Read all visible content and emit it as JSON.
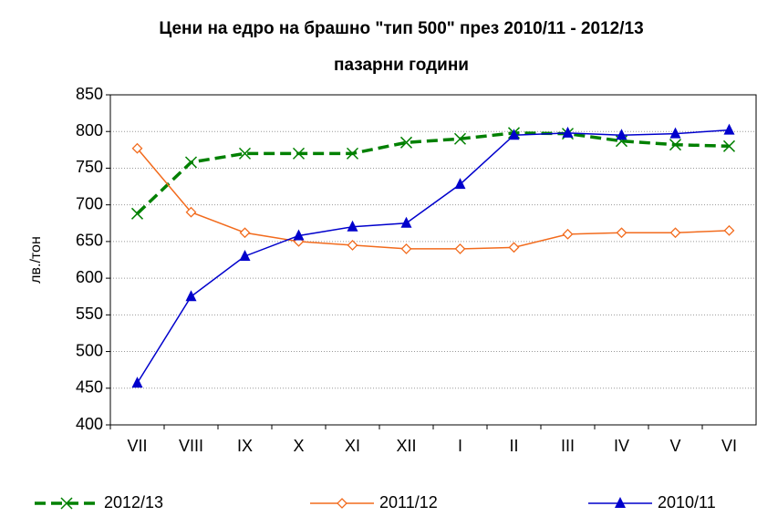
{
  "chart_data": {
    "type": "line",
    "title": [
      "Цени на едро на брашно \"тип 500\" през 2010/11 - 2012/13",
      "пазарни години"
    ],
    "y_label": "лв./тон",
    "categories": [
      "VII",
      "VIII",
      "IX",
      "X",
      "XI",
      "XII",
      "I",
      "II",
      "III",
      "IV",
      "V",
      "VI"
    ],
    "series": [
      {
        "name": "2012/13",
        "color": "#008000",
        "marker": "x",
        "dash": true,
        "values": [
          688,
          758,
          770,
          770,
          770,
          785,
          790,
          798,
          797,
          787,
          782,
          780
        ]
      },
      {
        "name": "2011/12",
        "color": "#f26b1d",
        "marker": "diamond",
        "dash": false,
        "values": [
          777,
          690,
          662,
          650,
          645,
          640,
          640,
          642,
          660,
          662,
          662,
          665
        ]
      },
      {
        "name": "2010/11",
        "color": "#0000cc",
        "marker": "triangle",
        "dash": false,
        "values": [
          457,
          575,
          630,
          658,
          670,
          675,
          728,
          795,
          798,
          795,
          797,
          802
        ]
      }
    ],
    "ylim": [
      400,
      850
    ],
    "yticks": [
      400,
      450,
      500,
      550,
      600,
      650,
      700,
      750,
      800,
      850
    ],
    "grid": true,
    "legend": "bottom"
  }
}
